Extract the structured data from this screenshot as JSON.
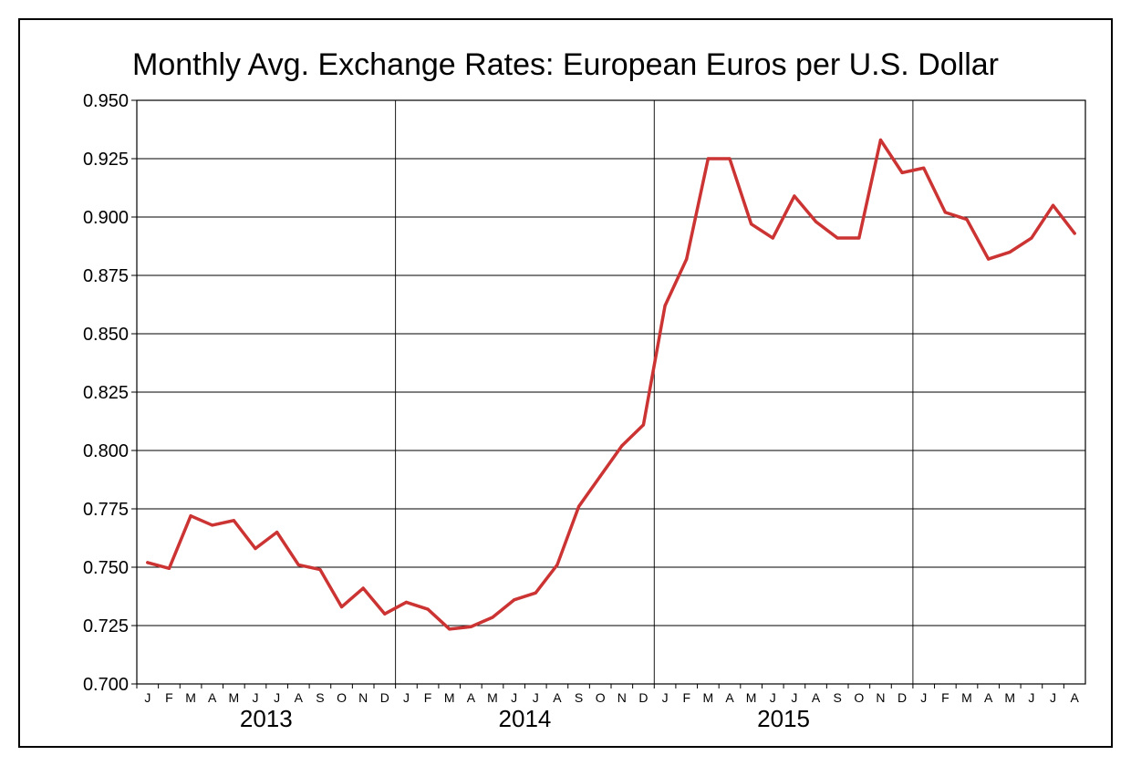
{
  "chart_data": {
    "type": "line",
    "title": "Monthly Avg. Exchange Rates: European Euros per U.S. Dollar",
    "xlabel": "",
    "ylabel": "",
    "ylim": [
      0.7,
      0.95
    ],
    "yticks": [
      "0.950",
      "0.925",
      "0.900",
      "0.875",
      "0.850",
      "0.825",
      "0.800",
      "0.775",
      "0.750",
      "0.725",
      "0.700"
    ],
    "grid": true,
    "legend": "none",
    "line_color": "#cc3333",
    "month_labels": [
      "J",
      "F",
      "M",
      "A",
      "M",
      "J",
      "J",
      "A",
      "S",
      "O",
      "N",
      "D",
      "J",
      "F",
      "M",
      "A",
      "M",
      "J",
      "J",
      "A",
      "S",
      "O",
      "N",
      "D",
      "J",
      "F",
      "M",
      "A",
      "M",
      "J",
      "J",
      "A",
      "S",
      "O",
      "N",
      "D",
      "J",
      "F",
      "M",
      "A",
      "M",
      "J",
      "J",
      "A"
    ],
    "year_labels": [
      "2013",
      "2014",
      "2015"
    ],
    "series": [
      {
        "values": [
          0.752,
          0.7495,
          0.772,
          0.768,
          0.77,
          0.758,
          0.765,
          0.751,
          0.749,
          0.733,
          0.741,
          0.73,
          0.735,
          0.732,
          0.7235,
          0.7245,
          0.7285,
          0.736,
          0.739,
          0.751,
          0.776,
          0.789,
          0.802,
          0.811,
          0.862,
          0.882,
          0.925,
          0.925,
          0.897,
          0.891,
          0.909,
          0.898,
          0.891,
          0.891,
          0.933,
          0.919,
          0.921,
          0.902,
          0.899,
          0.882,
          0.885,
          0.891,
          0.905,
          0.893
        ]
      }
    ]
  }
}
